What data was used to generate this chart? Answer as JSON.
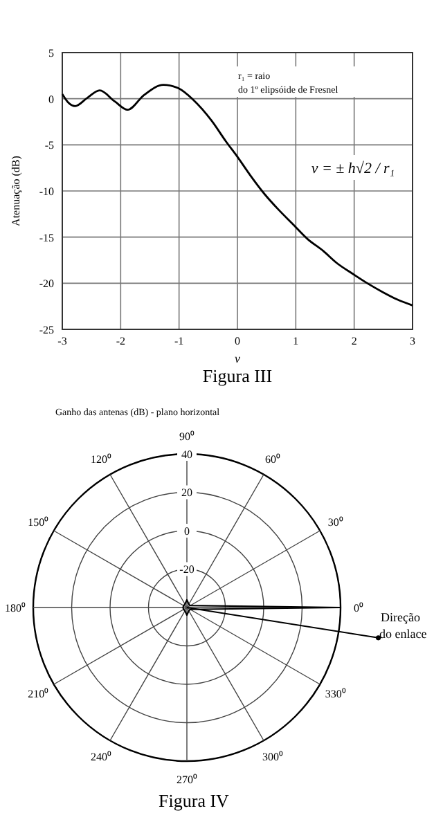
{
  "chart_data": [
    {
      "type": "line",
      "xlabel": "ν",
      "ylabel": "Atenuação (dB)",
      "xlim": [
        -3,
        3
      ],
      "xticks": [
        -3,
        -2,
        -1,
        0,
        1,
        2,
        3
      ],
      "ylim": [
        -25,
        5
      ],
      "yticks": [
        -25,
        -20,
        -15,
        -10,
        -5,
        0,
        5
      ],
      "grid": true,
      "marker": "none",
      "line_style": "solid",
      "series": [
        {
          "color": "#000000",
          "x": [
            -3,
            -2.9,
            -2.78,
            -2.57,
            -2.36,
            -2.1,
            -1.88,
            -1.6,
            -1.27,
            -1.0,
            -0.76,
            -0.44,
            -0.2,
            0,
            0.22,
            0.46,
            0.7,
            0.95,
            1.2,
            1.47,
            1.7,
            1.98,
            2.25,
            2.5,
            2.75,
            3
          ],
          "values": [
            0.5,
            -0.4,
            -0.8,
            0.1,
            0.9,
            -0.3,
            -1.2,
            0.4,
            1.5,
            1.1,
            -0.1,
            -2.4,
            -4.6,
            -6.3,
            -8.3,
            -10.3,
            -12.0,
            -13.6,
            -15.2,
            -16.5,
            -17.8,
            -19.0,
            -20.1,
            -21.0,
            -21.8,
            -22.4
          ]
        }
      ],
      "annotations": [
        "r₁ = raio do 1º elipsóide de Fresnel",
        "ν = ± h√2 / r₁",
        "Figura III"
      ]
    },
    {
      "type": "radar",
      "title": "Ganho das antenas (dB) - plano horizontal",
      "ylim": [
        -40,
        40
      ],
      "yticks": [
        -20,
        0,
        20,
        40
      ],
      "grid": true,
      "categories": [
        "90⁰",
        "60⁰",
        "30⁰",
        "0⁰",
        "330⁰",
        "300⁰",
        "270⁰",
        "240⁰",
        "210⁰",
        "180⁰",
        "150⁰",
        "120⁰"
      ],
      "series": [
        {
          "color": "#000000",
          "values": [
            -36,
            -38,
            -38,
            40,
            -38,
            -38,
            -36,
            -38,
            -38,
            -38,
            -38,
            -38
          ]
        }
      ],
      "annotations": [
        "Direção do enlace",
        "Figura IV"
      ]
    }
  ]
}
